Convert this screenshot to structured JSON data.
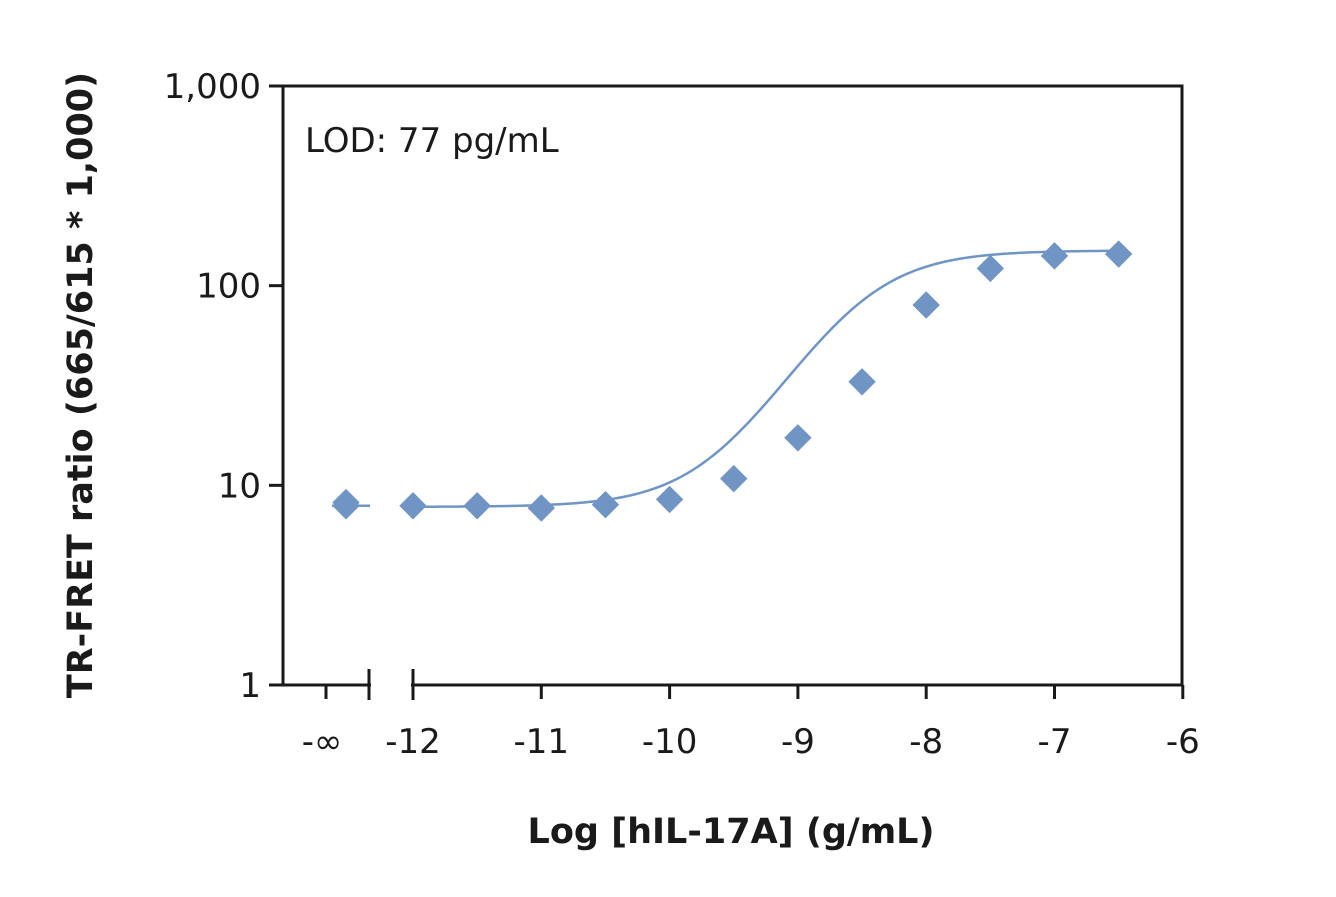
{
  "chart_data": {
    "type": "scatter",
    "title": "",
    "xlabel": "Log [hIL-17A] (g/mL)",
    "ylabel": "TR-FRET ratio (665/615 * 1,000)",
    "y_scale": "log",
    "ylim": [
      1,
      1000
    ],
    "xlim": [
      -12.5,
      -6
    ],
    "x_ticks": [
      {
        "value": -12,
        "label": "-12"
      },
      {
        "value": -11,
        "label": "-11"
      },
      {
        "value": -10,
        "label": "-10"
      },
      {
        "value": -9,
        "label": "-9"
      },
      {
        "value": -8,
        "label": "-8"
      },
      {
        "value": -7,
        "label": "-7"
      },
      {
        "value": -6,
        "label": "-6"
      }
    ],
    "x_break_label": "-∞",
    "y_ticks": [
      {
        "value": 1,
        "label": "1"
      },
      {
        "value": 10,
        "label": "10"
      },
      {
        "value": 100,
        "label": "100"
      },
      {
        "value": 1000,
        "label": "1,000"
      }
    ],
    "annotation": "LOD: 77 pg/mL",
    "marker": "diamond",
    "color": "#7094c4",
    "zero_conc_points": [
      7.9,
      8.2
    ],
    "series": [
      {
        "x": [
          -12,
          -11.5,
          -11,
          -10.5,
          -10,
          -9.5,
          -9,
          -8.5,
          -8,
          -7.5,
          -7,
          -6.5
        ],
        "y": [
          7.9,
          7.9,
          7.7,
          8.0,
          8.5,
          10.8,
          17.3,
          33.0,
          80.0,
          122.0,
          141.0,
          144.0
        ]
      }
    ],
    "fit_curve": {
      "type": "4PL",
      "bottom": 7.8,
      "top": 150,
      "log_ec50": -8.55,
      "hill": 1.2
    }
  }
}
